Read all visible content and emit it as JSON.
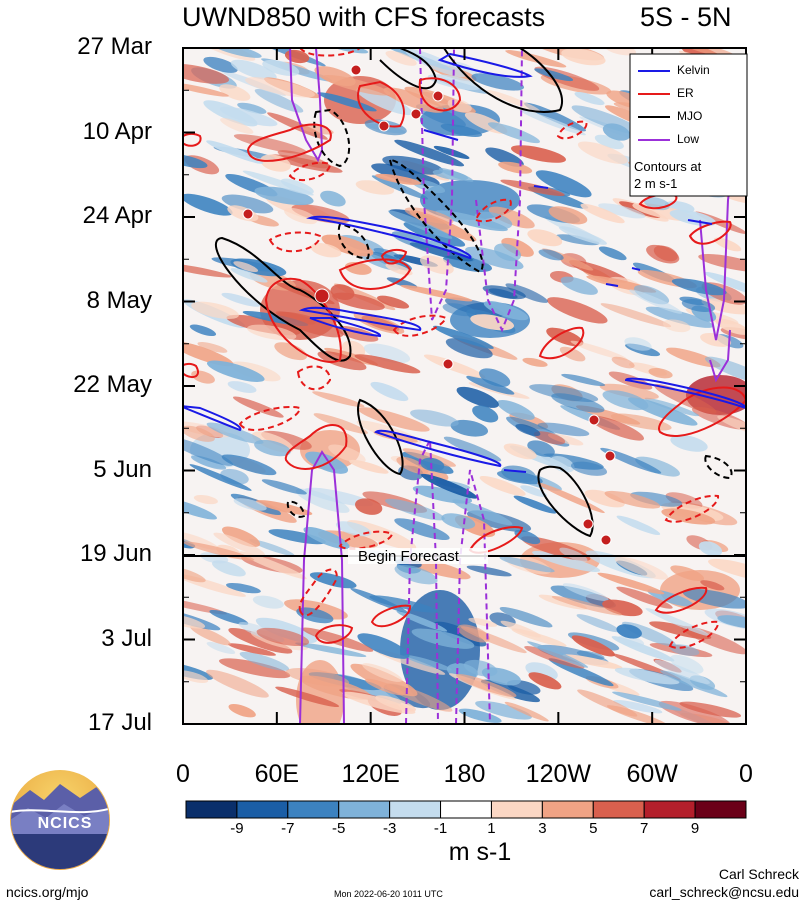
{
  "title": "UWND850 with CFS forecasts",
  "region": "5S - 5N",
  "chart_data": {
    "type": "heatmap",
    "description_variable": "UWND850",
    "y_axis": {
      "ticks": [
        "27 Mar",
        "10 Apr",
        "24 Apr",
        "8 May",
        "22 May",
        "5 Jun",
        "19 Jun",
        "3 Jul",
        "17 Jul"
      ],
      "start": "2022-03-27",
      "end": "2022-07-17"
    },
    "x_axis": {
      "ticks": [
        "0",
        "60E",
        "120E",
        "180",
        "120W",
        "60W",
        "0"
      ],
      "range_deg": [
        0,
        360
      ]
    },
    "forecast_start": "19 Jun",
    "forecast_label": "Begin Forecast",
    "colorbar": {
      "ticks": [
        "-9",
        "-7",
        "-5",
        "-3",
        "-1",
        "1",
        "3",
        "5",
        "7",
        "9"
      ],
      "colors": [
        "#0a2f6b",
        "#1b5ea6",
        "#3c82c0",
        "#7fb2d9",
        "#c4dcee",
        "#ffffff",
        "#fbd7c4",
        "#f0a385",
        "#d9604e",
        "#b41f2b",
        "#6b0018"
      ],
      "units": "m s-1"
    },
    "legend": {
      "position": "top-right",
      "entries": [
        {
          "name": "Kelvin",
          "color": "#1a1ae6"
        },
        {
          "name": "ER",
          "color": "#e61a1a"
        },
        {
          "name": "MJO",
          "color": "#000000"
        },
        {
          "name": "Low",
          "color": "#9b30d9"
        }
      ],
      "note": [
        "Contours at",
        "2 m s-1"
      ]
    }
  },
  "footer": {
    "site": "ncics.org/mjo",
    "timestamp": "Mon 2022-06-20 1011 UTC",
    "author": "Carl Schreck",
    "email": "carl_schreck@ncsu.edu",
    "logo_text": "NCICS"
  }
}
